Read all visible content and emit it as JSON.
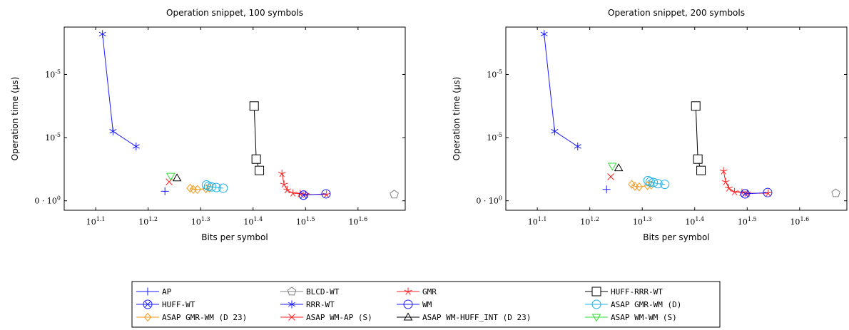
{
  "colors": {
    "blue": "#1a1aff",
    "red": "#ff2020",
    "gray": "#808080",
    "black": "#000000",
    "cyan": "#1ab2ee",
    "orange": "#f39a1e",
    "green": "#33dd33"
  },
  "legend": [
    {
      "name": "AP",
      "color": "#1a1aff",
      "marker": "plus"
    },
    {
      "name": "BLCD-WT",
      "color": "#808080",
      "marker": "pentagon"
    },
    {
      "name": "GMR",
      "color": "#ff2020",
      "marker": "star"
    },
    {
      "name": "HUFF-RRR-WT",
      "color": "#000000",
      "marker": "square"
    },
    {
      "name": "HUFF-WT",
      "color": "#1a1aff",
      "marker": "otimes"
    },
    {
      "name": "RRR-WT",
      "color": "#1a1aff",
      "marker": "asterisk"
    },
    {
      "name": "WM",
      "color": "#1a1aff",
      "marker": "circle"
    },
    {
      "name": "ASAP GMR-WM (D)",
      "color": "#1ab2ee",
      "marker": "circle"
    },
    {
      "name": "ASAP GMR-WM (D 23)",
      "color": "#f39a1e",
      "marker": "diamond"
    },
    {
      "name": "ASAP WM-AP (S)",
      "color": "#ff2020",
      "marker": "cross"
    },
    {
      "name": "ASAP WM-HUFF_INT (D 23)",
      "color": "#000000",
      "marker": "triangle"
    },
    {
      "name": "ASAP WM-WM (S)",
      "color": "#33dd33",
      "marker": "triangle-down"
    }
  ],
  "chart_data": [
    {
      "type": "line",
      "title": "Operation snippet, 100 symbols",
      "xlabel": "Bits per symbol",
      "ylabel": "Operation time (µs)",
      "x_ticks": [
        "10^1.1",
        "10^1.2",
        "10^1.3",
        "10^1.4",
        "10^1.5",
        "10^1.6"
      ],
      "x_tick_values": [
        1.1,
        1.2,
        1.3,
        1.4,
        1.5,
        1.6
      ],
      "y_ticks": [
        "0 · 10^0",
        "10^-5",
        "10^-5"
      ],
      "y_tick_values": [
        0,
        1,
        2
      ],
      "xlim": [
        1.04,
        1.69
      ],
      "ylim": [
        -0.15,
        2.75
      ],
      "x_scale": "log10 exponent",
      "y_scale": "approximate level",
      "series": [
        {
          "name": "RRR-WT",
          "color": "#1a1aff",
          "marker": "asterisk",
          "points": [
            [
              1.113,
              2.64
            ],
            [
              1.133,
              1.1
            ],
            [
              1.177,
              0.86
            ]
          ]
        },
        {
          "name": "HUFF-RRR-WT",
          "color": "#000000",
          "marker": "square",
          "points": [
            [
              1.402,
              1.5
            ],
            [
              1.406,
              0.66
            ],
            [
              1.412,
              0.48
            ]
          ]
        },
        {
          "name": "GMR",
          "color": "#ff2020",
          "marker": "star",
          "points": [
            [
              1.455,
              0.43
            ],
            [
              1.459,
              0.26
            ],
            [
              1.465,
              0.17
            ],
            [
              1.476,
              0.12
            ],
            [
              1.49,
              0.11
            ],
            [
              1.5,
              0.1
            ],
            [
              1.54,
              0.1
            ]
          ]
        },
        {
          "name": "WM",
          "color": "#1a1aff",
          "marker": "circle",
          "points": [
            [
              1.496,
              0.09
            ],
            [
              1.539,
              0.11
            ]
          ]
        },
        {
          "name": "HUFF-WT",
          "color": "#1a1aff",
          "marker": "otimes",
          "points": [
            [
              1.496,
              0.09
            ]
          ]
        },
        {
          "name": "AP",
          "color": "#1a1aff",
          "marker": "plus",
          "points": [
            [
              1.232,
              0.15
            ]
          ]
        },
        {
          "name": "ASAP WM-AP (S)",
          "color": "#ff2020",
          "marker": "cross",
          "points": [
            [
              1.24,
              0.3
            ]
          ]
        },
        {
          "name": "ASAP WM-WM (S)",
          "color": "#33dd33",
          "marker": "triangle-down",
          "points": [
            [
              1.243,
              0.39
            ]
          ]
        },
        {
          "name": "ASAP WM-HUFF_INT (D 23)",
          "color": "#000000",
          "marker": "triangle",
          "points": [
            [
              1.255,
              0.36
            ]
          ]
        },
        {
          "name": "ASAP GMR-WM (D 23)",
          "color": "#f39a1e",
          "marker": "diamond",
          "points": [
            [
              1.28,
              0.2
            ],
            [
              1.286,
              0.18
            ],
            [
              1.294,
              0.18
            ],
            [
              1.31,
              0.19
            ],
            [
              1.317,
              0.2
            ]
          ]
        },
        {
          "name": "ASAP GMR-WM (D)",
          "color": "#1ab2ee",
          "marker": "circle",
          "points": [
            [
              1.311,
              0.25
            ],
            [
              1.315,
              0.23
            ],
            [
              1.321,
              0.22
            ],
            [
              1.33,
              0.21
            ],
            [
              1.343,
              0.2
            ]
          ]
        },
        {
          "name": "BLCD-WT",
          "color": "#808080",
          "marker": "pentagon",
          "points": [
            [
              1.669,
              0.1
            ]
          ]
        }
      ]
    },
    {
      "type": "line",
      "title": "Operation snippet, 200 symbols",
      "xlabel": "Bits per symbol",
      "ylabel": "Operation time (µs)",
      "x_ticks": [
        "10^1.1",
        "10^1.2",
        "10^1.3",
        "10^1.4",
        "10^1.5",
        "10^1.6"
      ],
      "x_tick_values": [
        1.1,
        1.2,
        1.3,
        1.4,
        1.5,
        1.6
      ],
      "y_ticks": [
        "0 · 10^0",
        "10^-5",
        "10^-5"
      ],
      "y_tick_values": [
        0,
        1,
        2
      ],
      "xlim": [
        1.04,
        1.69
      ],
      "ylim": [
        -0.15,
        2.75
      ],
      "x_scale": "log10 exponent",
      "y_scale": "approximate level",
      "series": [
        {
          "name": "RRR-WT",
          "color": "#1a1aff",
          "marker": "asterisk",
          "points": [
            [
              1.113,
              2.64
            ],
            [
              1.133,
              1.1
            ],
            [
              1.177,
              0.86
            ]
          ]
        },
        {
          "name": "HUFF-RRR-WT",
          "color": "#000000",
          "marker": "square",
          "points": [
            [
              1.402,
              1.5
            ],
            [
              1.406,
              0.66
            ],
            [
              1.412,
              0.48
            ]
          ]
        },
        {
          "name": "GMR",
          "color": "#ff2020",
          "marker": "star",
          "points": [
            [
              1.455,
              0.47
            ],
            [
              1.459,
              0.3
            ],
            [
              1.465,
              0.2
            ],
            [
              1.476,
              0.14
            ],
            [
              1.49,
              0.13
            ],
            [
              1.5,
              0.12
            ],
            [
              1.54,
              0.12
            ]
          ]
        },
        {
          "name": "WM",
          "color": "#1a1aff",
          "marker": "circle",
          "points": [
            [
              1.496,
              0.11
            ],
            [
              1.539,
              0.13
            ]
          ]
        },
        {
          "name": "HUFF-WT",
          "color": "#1a1aff",
          "marker": "otimes",
          "points": [
            [
              1.496,
              0.11
            ]
          ]
        },
        {
          "name": "AP",
          "color": "#1a1aff",
          "marker": "plus",
          "points": [
            [
              1.232,
              0.18
            ]
          ]
        },
        {
          "name": "ASAP WM-AP (S)",
          "color": "#ff2020",
          "marker": "cross",
          "points": [
            [
              1.24,
              0.38
            ]
          ]
        },
        {
          "name": "ASAP WM-WM (S)",
          "color": "#33dd33",
          "marker": "triangle-down",
          "points": [
            [
              1.243,
              0.55
            ]
          ]
        },
        {
          "name": "ASAP WM-HUFF_INT (D 23)",
          "color": "#000000",
          "marker": "triangle",
          "points": [
            [
              1.255,
              0.52
            ]
          ]
        },
        {
          "name": "ASAP GMR-WM (D 23)",
          "color": "#f39a1e",
          "marker": "diamond",
          "points": [
            [
              1.28,
              0.26
            ],
            [
              1.286,
              0.23
            ],
            [
              1.294,
              0.22
            ],
            [
              1.31,
              0.24
            ],
            [
              1.317,
              0.25
            ]
          ]
        },
        {
          "name": "ASAP GMR-WM (D)",
          "color": "#1ab2ee",
          "marker": "circle",
          "points": [
            [
              1.311,
              0.32
            ],
            [
              1.315,
              0.3
            ],
            [
              1.321,
              0.29
            ],
            [
              1.33,
              0.27
            ],
            [
              1.343,
              0.26
            ]
          ]
        },
        {
          "name": "BLCD-WT",
          "color": "#808080",
          "marker": "pentagon",
          "points": [
            [
              1.669,
              0.12
            ]
          ]
        }
      ]
    }
  ]
}
